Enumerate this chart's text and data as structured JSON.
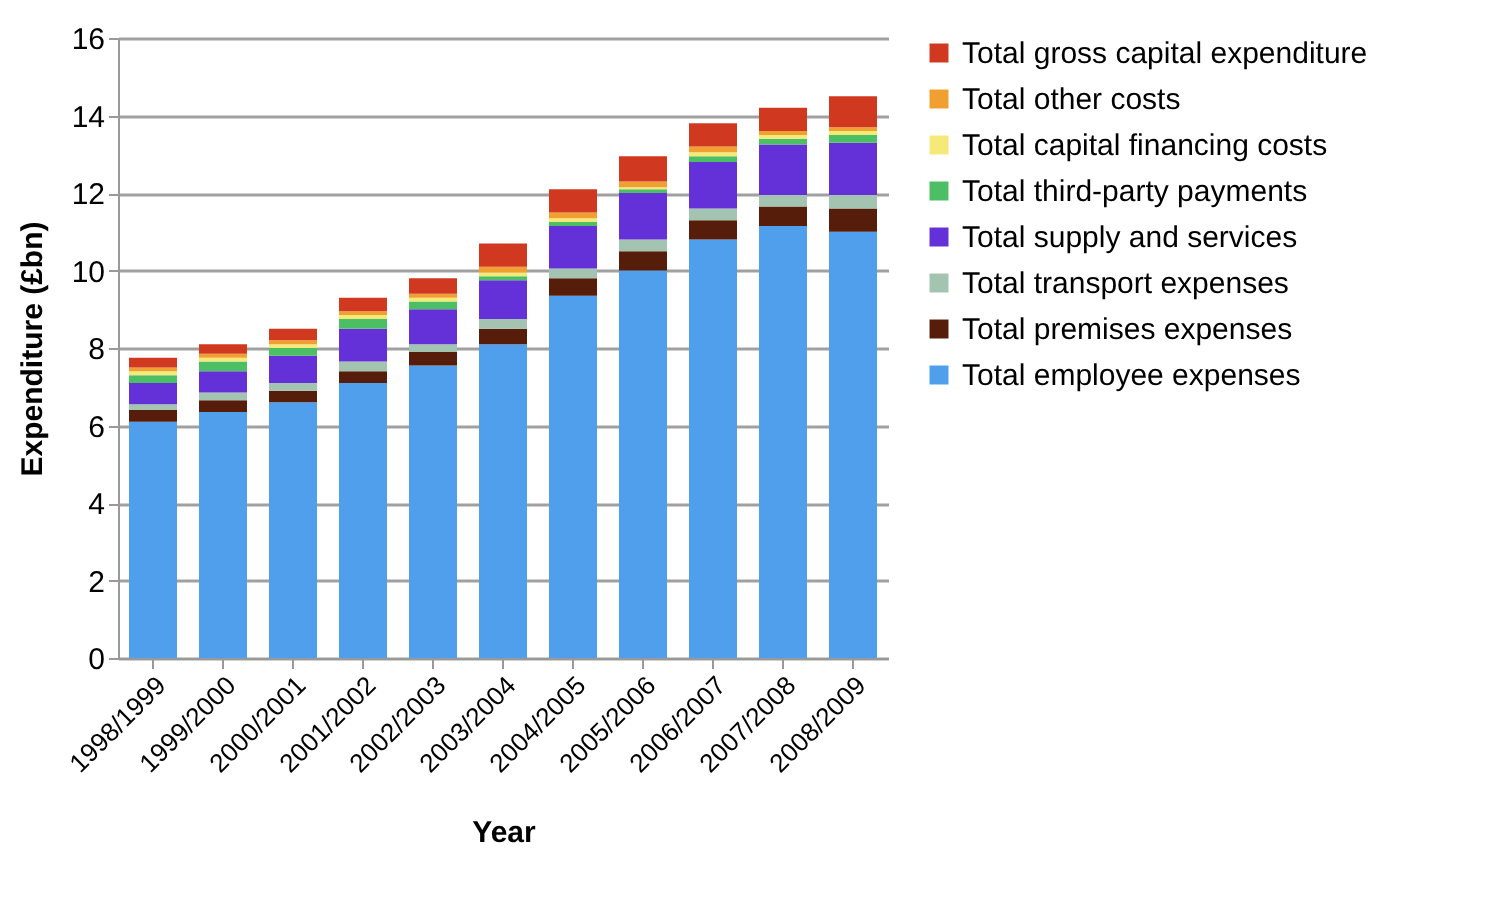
{
  "chart_data": {
    "type": "bar",
    "stacked": true,
    "xlabel": "Year",
    "ylabel": "Expenditure (£bn)",
    "categories": [
      "1998/1999",
      "1999/2000",
      "2000/2001",
      "2001/2002",
      "2002/2003",
      "2003/2004",
      "2004/2005",
      "2005/2006",
      "2006/2007",
      "2007/2008",
      "2008/2009"
    ],
    "series": [
      {
        "name": "Total employee expenses",
        "color": "#4f9fec",
        "values": [
          6.1,
          6.35,
          6.6,
          7.1,
          7.55,
          8.1,
          9.35,
          10.0,
          10.8,
          11.15,
          11.0
        ]
      },
      {
        "name": "Total premises expenses",
        "color": "#561d0a",
        "values": [
          0.3,
          0.3,
          0.3,
          0.3,
          0.35,
          0.4,
          0.45,
          0.5,
          0.5,
          0.5,
          0.6
        ]
      },
      {
        "name": "Total transport expenses",
        "color": "#a3c4b0",
        "values": [
          0.15,
          0.2,
          0.2,
          0.25,
          0.2,
          0.25,
          0.25,
          0.3,
          0.3,
          0.3,
          0.35
        ]
      },
      {
        "name": "Total supply and services",
        "color": "#6431d9",
        "values": [
          0.55,
          0.55,
          0.7,
          0.85,
          0.9,
          1.0,
          1.1,
          1.2,
          1.2,
          1.3,
          1.35
        ]
      },
      {
        "name": "Total third-party payments",
        "color": "#4cbe63",
        "values": [
          0.2,
          0.25,
          0.2,
          0.25,
          0.2,
          0.1,
          0.1,
          0.1,
          0.15,
          0.15,
          0.2
        ]
      },
      {
        "name": "Total capital financing costs",
        "color": "#f5e97a",
        "values": [
          0.1,
          0.1,
          0.1,
          0.1,
          0.1,
          0.1,
          0.1,
          0.05,
          0.1,
          0.1,
          0.1
        ]
      },
      {
        "name": "Total other costs",
        "color": "#f0a030",
        "values": [
          0.1,
          0.1,
          0.1,
          0.1,
          0.1,
          0.15,
          0.15,
          0.15,
          0.15,
          0.1,
          0.1
        ]
      },
      {
        "name": "Total gross capital expenditure",
        "color": "#d0381f",
        "values": [
          0.25,
          0.25,
          0.3,
          0.35,
          0.4,
          0.6,
          0.6,
          0.65,
          0.6,
          0.6,
          0.8
        ]
      }
    ],
    "ylim": [
      0,
      16
    ],
    "yticks": [
      0,
      2,
      4,
      6,
      8,
      10,
      12,
      14,
      16
    ],
    "grid": "y",
    "legend": "right"
  }
}
